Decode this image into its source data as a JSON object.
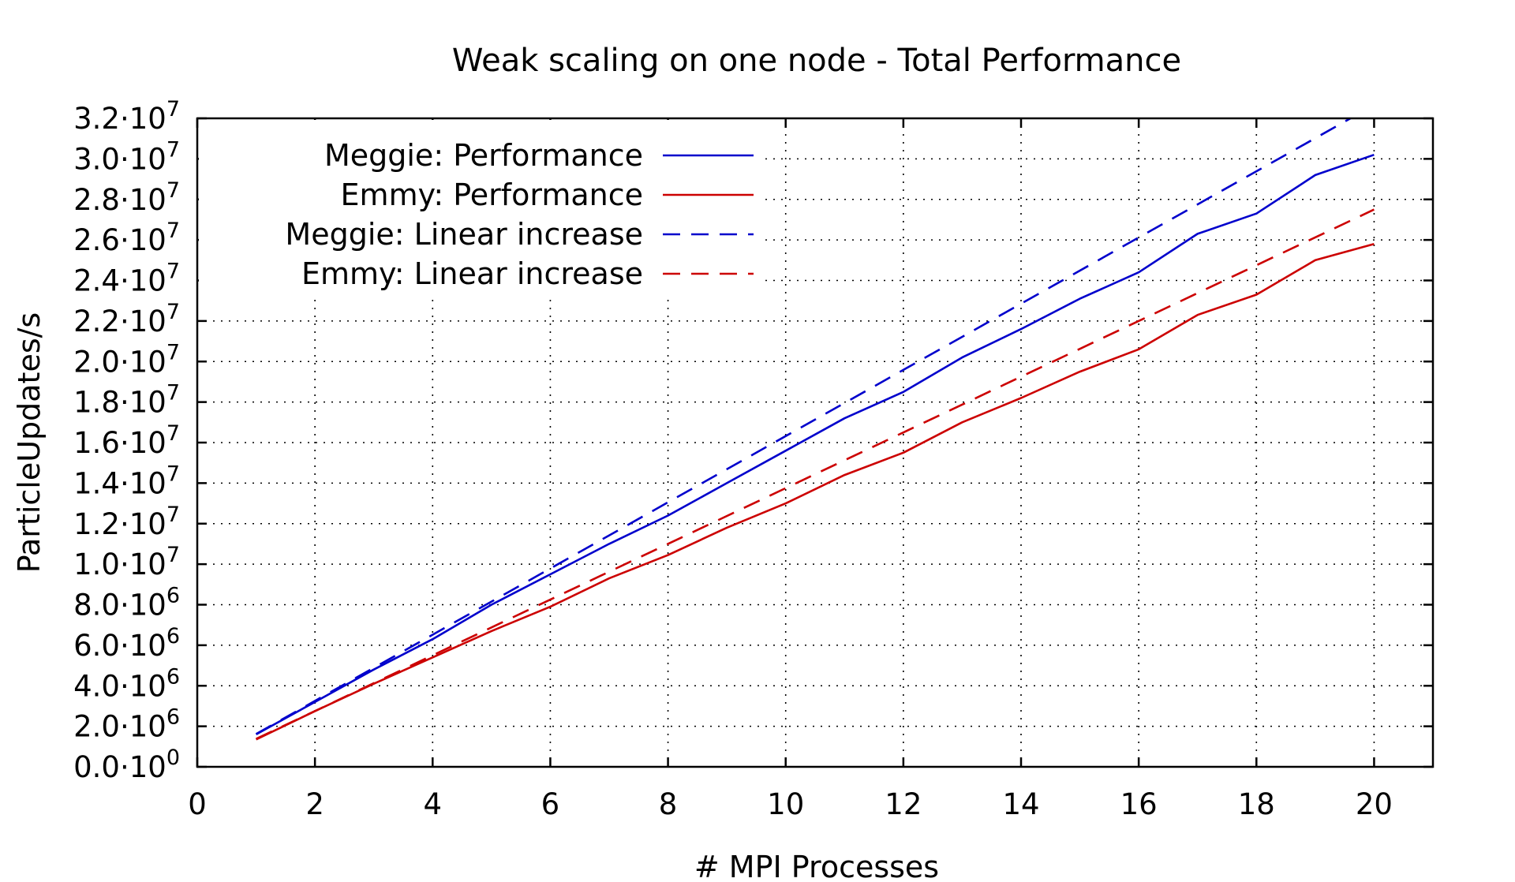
{
  "chart_data": {
    "type": "line",
    "title": "Weak scaling on one node - Total Performance",
    "xlabel": "# MPI Processes",
    "ylabel": "ParticleUpdates/s",
    "xlim": [
      0,
      21
    ],
    "ylim": [
      0,
      32000000
    ],
    "x_ticks": [
      0,
      2,
      4,
      6,
      8,
      10,
      12,
      14,
      16,
      18,
      20
    ],
    "y_ticks": [
      {
        "value": 0,
        "mantissa": "0.0",
        "exp": "0"
      },
      {
        "value": 2000000,
        "mantissa": "2.0",
        "exp": "6"
      },
      {
        "value": 4000000,
        "mantissa": "4.0",
        "exp": "6"
      },
      {
        "value": 6000000,
        "mantissa": "6.0",
        "exp": "6"
      },
      {
        "value": 8000000,
        "mantissa": "8.0",
        "exp": "6"
      },
      {
        "value": 10000000,
        "mantissa": "1.0",
        "exp": "7"
      },
      {
        "value": 12000000,
        "mantissa": "1.2",
        "exp": "7"
      },
      {
        "value": 14000000,
        "mantissa": "1.4",
        "exp": "7"
      },
      {
        "value": 16000000,
        "mantissa": "1.6",
        "exp": "7"
      },
      {
        "value": 18000000,
        "mantissa": "1.8",
        "exp": "7"
      },
      {
        "value": 20000000,
        "mantissa": "2.0",
        "exp": "7"
      },
      {
        "value": 22000000,
        "mantissa": "2.2",
        "exp": "7"
      },
      {
        "value": 24000000,
        "mantissa": "2.4",
        "exp": "7"
      },
      {
        "value": 26000000,
        "mantissa": "2.6",
        "exp": "7"
      },
      {
        "value": 28000000,
        "mantissa": "2.8",
        "exp": "7"
      },
      {
        "value": 30000000,
        "mantissa": "3.0",
        "exp": "7"
      },
      {
        "value": 32000000,
        "mantissa": "3.2",
        "exp": "7"
      }
    ],
    "grid": true,
    "legend_position": "top-left",
    "series": [
      {
        "name": "Meggie: Performance",
        "color": "#0000cc",
        "style": "solid",
        "x": [
          1,
          2,
          3,
          4,
          5,
          6,
          7,
          8,
          9,
          10,
          11,
          12,
          13,
          14,
          15,
          16,
          17,
          18,
          19,
          20
        ],
        "values": [
          1600000,
          3200000,
          4800000,
          6300000,
          8000000,
          9500000,
          11000000,
          12400000,
          14000000,
          15600000,
          17200000,
          18500000,
          20200000,
          21600000,
          23100000,
          24400000,
          26300000,
          27300000,
          29200000,
          30200000
        ]
      },
      {
        "name": "Emmy: Performance",
        "color": "#cc0000",
        "style": "solid",
        "x": [
          1,
          2,
          3,
          4,
          5,
          6,
          7,
          8,
          9,
          10,
          11,
          12,
          13,
          14,
          15,
          16,
          17,
          18,
          19,
          20
        ],
        "values": [
          1350000,
          2750000,
          4100000,
          5400000,
          6700000,
          7900000,
          9300000,
          10450000,
          11800000,
          13000000,
          14400000,
          15500000,
          17000000,
          18200000,
          19500000,
          20600000,
          22300000,
          23300000,
          25000000,
          25800000
        ]
      },
      {
        "name": "Meggie: Linear increase",
        "color": "#0000cc",
        "style": "dashed",
        "x": [
          1,
          19.6
        ],
        "values": [
          1620000,
          32000000
        ]
      },
      {
        "name": "Emmy: Linear increase",
        "color": "#cc0000",
        "style": "dashed",
        "x": [
          1,
          20
        ],
        "values": [
          1380000,
          27500000
        ]
      }
    ]
  }
}
